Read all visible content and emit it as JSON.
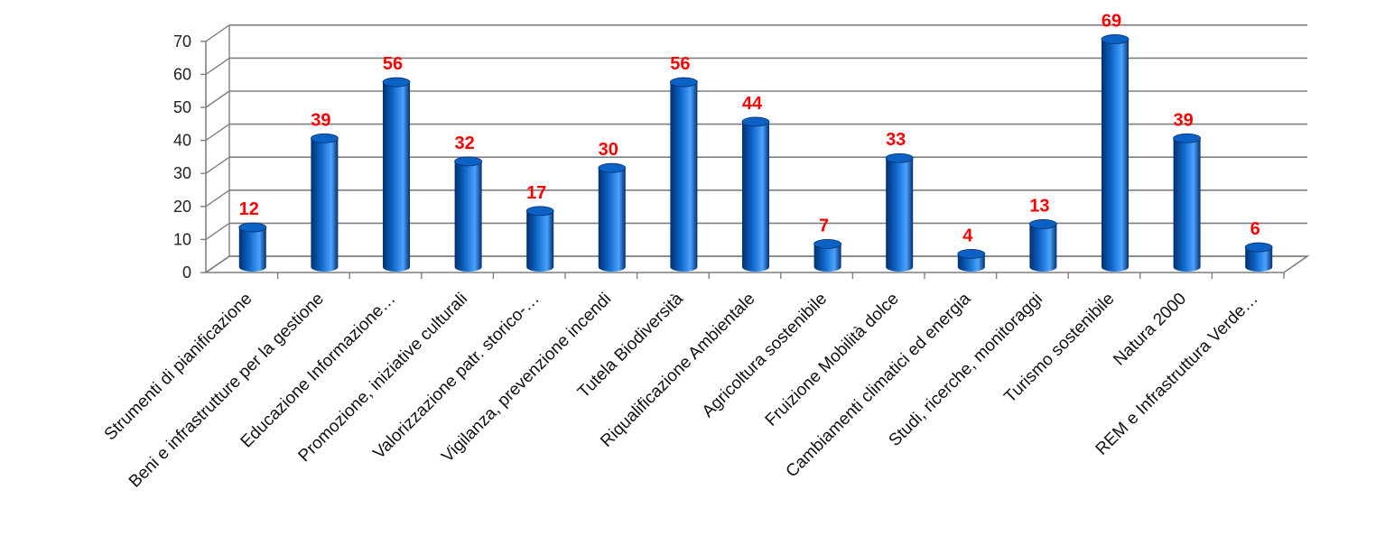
{
  "chart_data": {
    "type": "bar",
    "title": "",
    "xlabel": "",
    "ylabel": "",
    "ylim": [
      0,
      70
    ],
    "yticks": [
      0,
      10,
      20,
      30,
      40,
      50,
      60,
      70
    ],
    "grid": true,
    "legend": "none",
    "categories": [
      "Strumenti di pianificazione",
      "Beni e infrastrutture per la gestione",
      "Educazione Informazione…",
      "Promozione, iniziative culturali",
      "Valorizzazione patr. storico-…",
      "Vigilanza, prevenzione incendi",
      "Tutela Biodiversità",
      "Riqualificazione Ambientale",
      "Agricoltura sostenibile",
      "Fruizione Mobilità dolce",
      "Cambiamenti climatici ed energia",
      "Studi, ricerche, monitoraggi",
      "Turismo sostenibile",
      "Natura 2000",
      "REM e Infrastruttura Verde…"
    ],
    "values": [
      12,
      39,
      56,
      32,
      17,
      30,
      56,
      44,
      7,
      33,
      4,
      13,
      69,
      39,
      6
    ],
    "colors": {
      "bar": "#0b62c4",
      "bar_dark": "#05306e",
      "bar_light": "#4aa2ff",
      "data_label": "#ff0000",
      "grid": "#7f7f7f"
    }
  }
}
